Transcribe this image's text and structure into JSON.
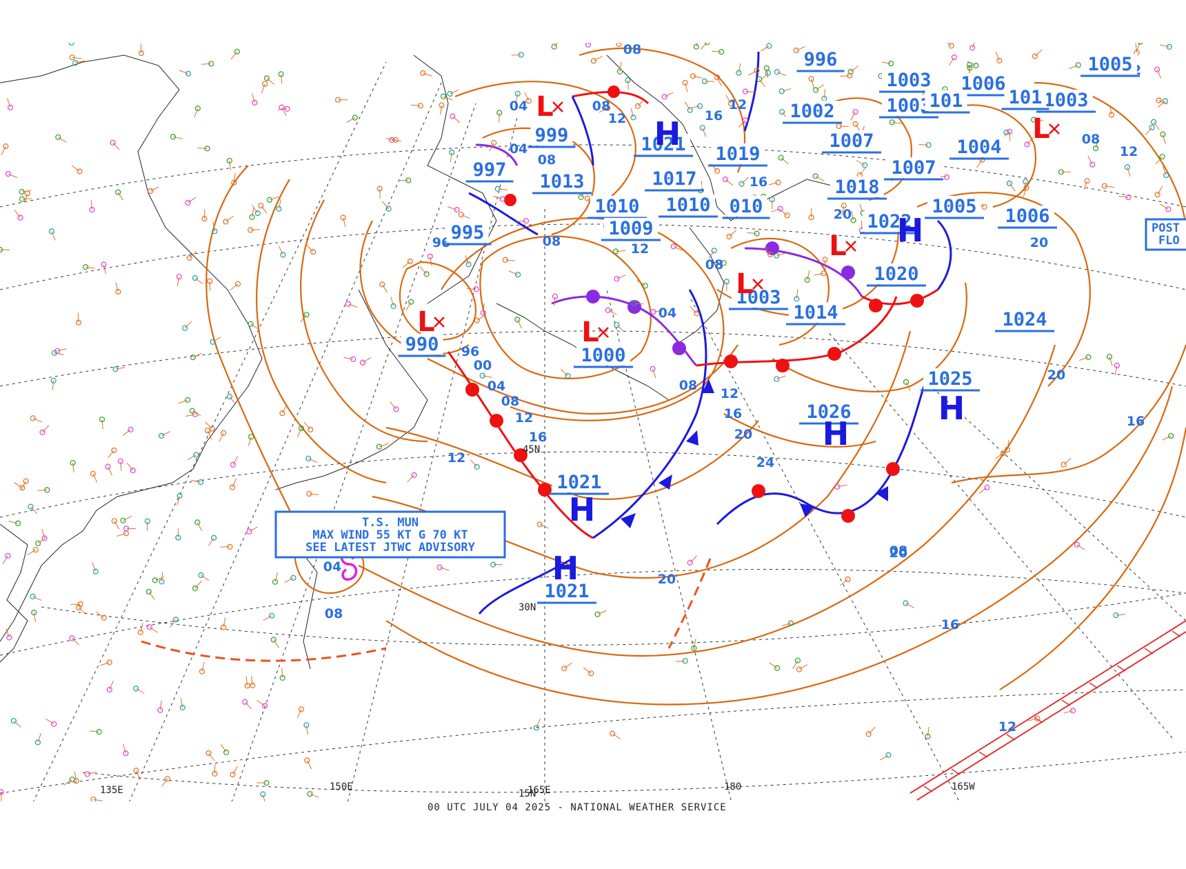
{
  "footer": "00 UTC JULY 04 2025 - NATIONAL WEATHER SERVICE",
  "advisory": {
    "line1": "T.S. MUN",
    "line2": "MAX WIND 55 KT G 70 KT",
    "line3": "SEE LATEST JTWC ADVISORY"
  },
  "post_box": {
    "line1": "POST",
    "line2": "FLO"
  },
  "longitude_labels": [
    "135E",
    "150E",
    "165E",
    "180",
    "165W"
  ],
  "latitude_labels": [
    "45N",
    "30N",
    "15N"
  ],
  "pressure_labels": [
    {
      "text": "996"
    },
    {
      "text": "1002"
    },
    {
      "text": "999"
    },
    {
      "text": "997"
    },
    {
      "text": "1013"
    },
    {
      "text": "1021"
    },
    {
      "text": "1019"
    },
    {
      "text": "1017"
    },
    {
      "text": "1010"
    },
    {
      "text": "1010"
    },
    {
      "text": "010"
    },
    {
      "text": "1009"
    },
    {
      "text": "995"
    },
    {
      "text": "990"
    },
    {
      "text": "1000"
    },
    {
      "text": "1003"
    },
    {
      "text": "1014"
    },
    {
      "text": "1003"
    },
    {
      "text": "1003"
    },
    {
      "text": "1006"
    },
    {
      "text": "1007"
    },
    {
      "text": "1007"
    },
    {
      "text": "1004"
    },
    {
      "text": "1018"
    },
    {
      "text": "1022"
    },
    {
      "text": "1005"
    },
    {
      "text": "1006"
    },
    {
      "text": "1020"
    },
    {
      "text": "1024"
    },
    {
      "text": "1025"
    },
    {
      "text": "1026"
    },
    {
      "text": "1021"
    },
    {
      "text": "1021"
    },
    {
      "text": "1005"
    },
    {
      "text": "1003"
    },
    {
      "text": "101"
    },
    {
      "text": "101"
    }
  ],
  "isobar_labels": [
    "08",
    "04",
    "08",
    "12",
    "16",
    "12",
    "16",
    "08",
    "04",
    "96",
    "08",
    "12",
    "08",
    "04",
    "00",
    "96",
    "08",
    "12",
    "16",
    "04",
    "08",
    "12",
    "16",
    "20",
    "24",
    "20",
    "20",
    "16",
    "20",
    "16",
    "12",
    "08",
    "04",
    "20",
    "12",
    "16",
    "20",
    "08",
    "12",
    "08",
    "12"
  ],
  "centers": [
    {
      "type": "H"
    },
    {
      "type": "H"
    },
    {
      "type": "H"
    },
    {
      "type": "H"
    },
    {
      "type": "H"
    },
    {
      "type": "H"
    },
    {
      "type": "L"
    },
    {
      "type": "L"
    },
    {
      "type": "L"
    },
    {
      "type": "L"
    },
    {
      "type": "L"
    },
    {
      "type": "L"
    }
  ],
  "colors": {
    "isobar": "#d9680e",
    "label": "#2a6fe0",
    "high": "#1a1ae0",
    "low": "#ee1111",
    "cold_front": "#1a1ae0",
    "warm_front": "#ee1111",
    "occluded": "#8a2be2",
    "cyclone": "#e020e0"
  }
}
